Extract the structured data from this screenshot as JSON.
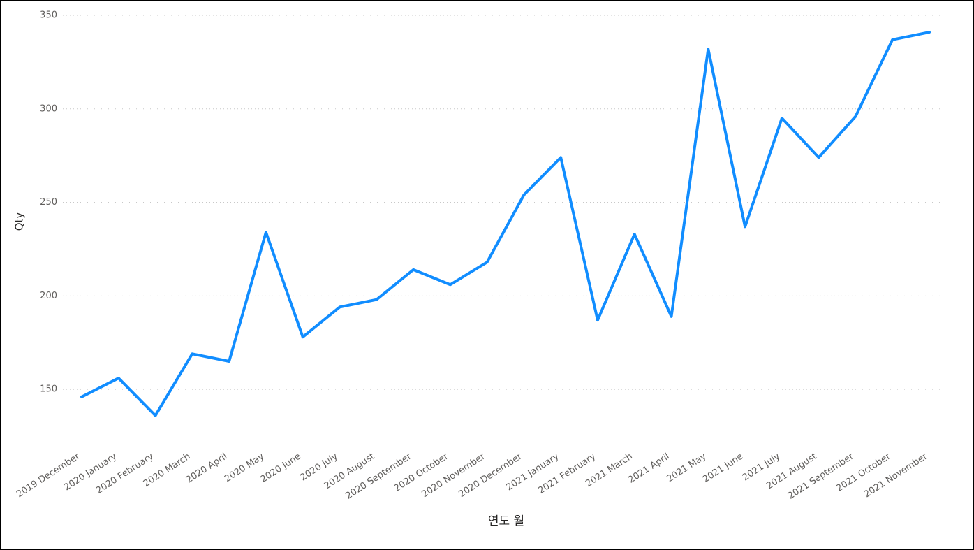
{
  "chart_data": {
    "type": "line",
    "y_label": "Qty",
    "x_label": "연도 월",
    "categories": [
      "2019 December",
      "2020 January",
      "2020 February",
      "2020 March",
      "2020 April",
      "2020 May",
      "2020 June",
      "2020 July",
      "2020 August",
      "2020 September",
      "2020 October",
      "2020 November",
      "2020 December",
      "2021 January",
      "2021 February",
      "2021 March",
      "2021 April",
      "2021 May",
      "2021 June",
      "2021 July",
      "2021 August",
      "2021 September",
      "2021 October",
      "2021 November"
    ],
    "values": [
      146,
      156,
      136,
      169,
      165,
      234,
      178,
      194,
      198,
      214,
      206,
      218,
      254,
      274,
      187,
      233,
      189,
      332,
      237,
      295,
      274,
      296,
      337,
      341
    ],
    "color": "#118dff",
    "ylim": [
      125,
      350
    ],
    "yticks": [
      150,
      200,
      250,
      300,
      350
    ],
    "grid": true
  }
}
